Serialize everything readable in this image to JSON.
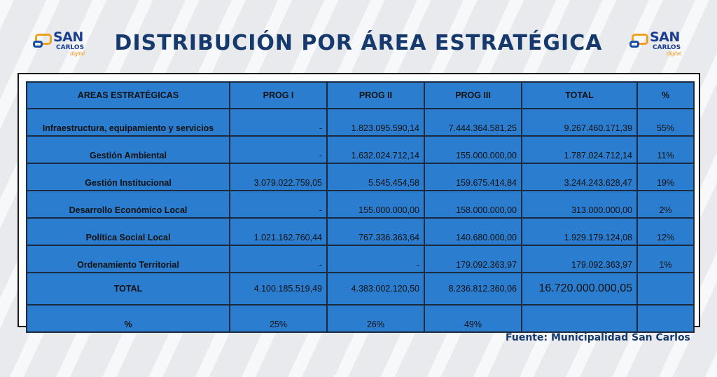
{
  "title": "DISTRIBUCIÓN POR ÁREA ESTRATÉGICA",
  "logo": {
    "line1": "SAN",
    "line2": "CARLOS",
    "line3": "digital"
  },
  "table": {
    "headers": [
      "AREAS ESTRATÉGICAS",
      "PROG I",
      "PROG II",
      "PROG III",
      "TOTAL",
      "%"
    ],
    "rows": [
      [
        "Infraestructura, equipamiento y servicios",
        "-",
        "1.823.095.590,14",
        "7.444.364.581,25",
        "9.267.460.171,39",
        "55%"
      ],
      [
        "Gestión Ambiental",
        "-",
        "1.632.024.712,14",
        "155.000.000,00",
        "1.787.024.712,14",
        "11%"
      ],
      [
        "Gestión Institucional",
        "3.079.022.759,05",
        "5.545.454,58",
        "159.675.414,84",
        "3.244.243.628,47",
        "19%"
      ],
      [
        "Desarrollo Económico Local",
        "-",
        "155.000.000,00",
        "158.000.000,00",
        "313.000.000,00",
        "2%"
      ],
      [
        "Política Social Local",
        "1.021.162.760,44",
        "767.336.363,64",
        "140.680.000,00",
        "1.929.179.124,08",
        "12%"
      ],
      [
        "Ordenamiento Territorial",
        "-",
        "-",
        "179.092.363,97",
        "179.092.363,97",
        "1%"
      ]
    ],
    "total": [
      "TOTAL",
      "4.100.185.519,49",
      "4.383.002.120,50",
      "8.236.812.360,06",
      "16.720.000.000,05",
      ""
    ],
    "percent": [
      "%",
      "25%",
      "26%",
      "49%",
      "",
      ""
    ]
  },
  "source": "Fuente: Municipalidad San Carlos"
}
